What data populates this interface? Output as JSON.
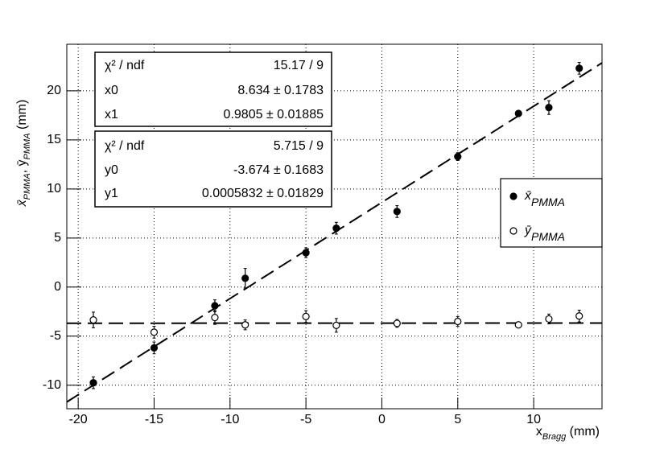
{
  "chart_data": {
    "type": "scatter",
    "x_label": {
      "parts": [
        {
          "text": "x"
        },
        {
          "text": "Bragg",
          "sub": true
        },
        {
          "text": " (mm)"
        }
      ]
    },
    "y_label": {
      "parts": [
        {
          "text": "x̄"
        },
        {
          "text": "PMMA",
          "sub": true
        },
        {
          "text": ", ȳ"
        },
        {
          "text": "PMMA",
          "sub": true
        },
        {
          "text": "  (mm)"
        }
      ]
    },
    "xlim": [
      -20.75,
      14.5
    ],
    "ylim": [
      -12.4,
      24.75
    ],
    "xticks": [
      -20,
      -15,
      -10,
      -5,
      0,
      5,
      10
    ],
    "yticks": [
      -10,
      -5,
      0,
      5,
      10,
      15,
      20
    ],
    "grid": true,
    "legend": "right",
    "x": [
      -19,
      -15,
      -11,
      -9,
      -5,
      -3,
      1,
      5,
      9,
      11,
      13
    ],
    "series": [
      {
        "name_parts": [
          {
            "text": "x̄"
          },
          {
            "text": "PMMA",
            "sub": true
          }
        ],
        "marker": "filled",
        "color": "#000000",
        "values": [
          -9.75,
          -6.2,
          -1.9,
          0.9,
          3.5,
          6.0,
          7.7,
          13.3,
          17.7,
          18.3,
          22.3
        ],
        "errors": [
          0.6,
          0.6,
          0.6,
          1.0,
          0.5,
          0.6,
          0.6,
          0.4,
          0.2,
          0.7,
          0.6
        ]
      },
      {
        "name_parts": [
          {
            "text": "ȳ"
          },
          {
            "text": "PMMA",
            "sub": true
          }
        ],
        "marker": "open",
        "color": "#000000",
        "values": [
          -3.35,
          -4.6,
          -3.1,
          -3.85,
          -3.0,
          -3.9,
          -3.7,
          -3.5,
          -3.85,
          -3.25,
          -2.95
        ],
        "errors": [
          0.8,
          0.6,
          0.7,
          0.5,
          0.6,
          0.7,
          0.4,
          0.5,
          0.2,
          0.5,
          0.6
        ]
      }
    ],
    "fits": [
      {
        "series": 0,
        "chi2_name": "χ² / ndf",
        "chi2": "15.17 / 9",
        "params": [
          {
            "name": "x0",
            "value": 8.634,
            "label": "8.634 ± 0.1783"
          },
          {
            "name": "x1",
            "value": 0.9805,
            "label": "0.9805 ± 0.01885"
          }
        ]
      },
      {
        "series": 1,
        "chi2_name": "χ² / ndf",
        "chi2": "5.715 / 9",
        "params": [
          {
            "name": "y0",
            "value": -3.674,
            "label": "-3.674 ± 0.1683"
          },
          {
            "name": "y1",
            "value": 0.0005832,
            "label": "0.0005832 ± 0.01829"
          }
        ]
      }
    ]
  }
}
